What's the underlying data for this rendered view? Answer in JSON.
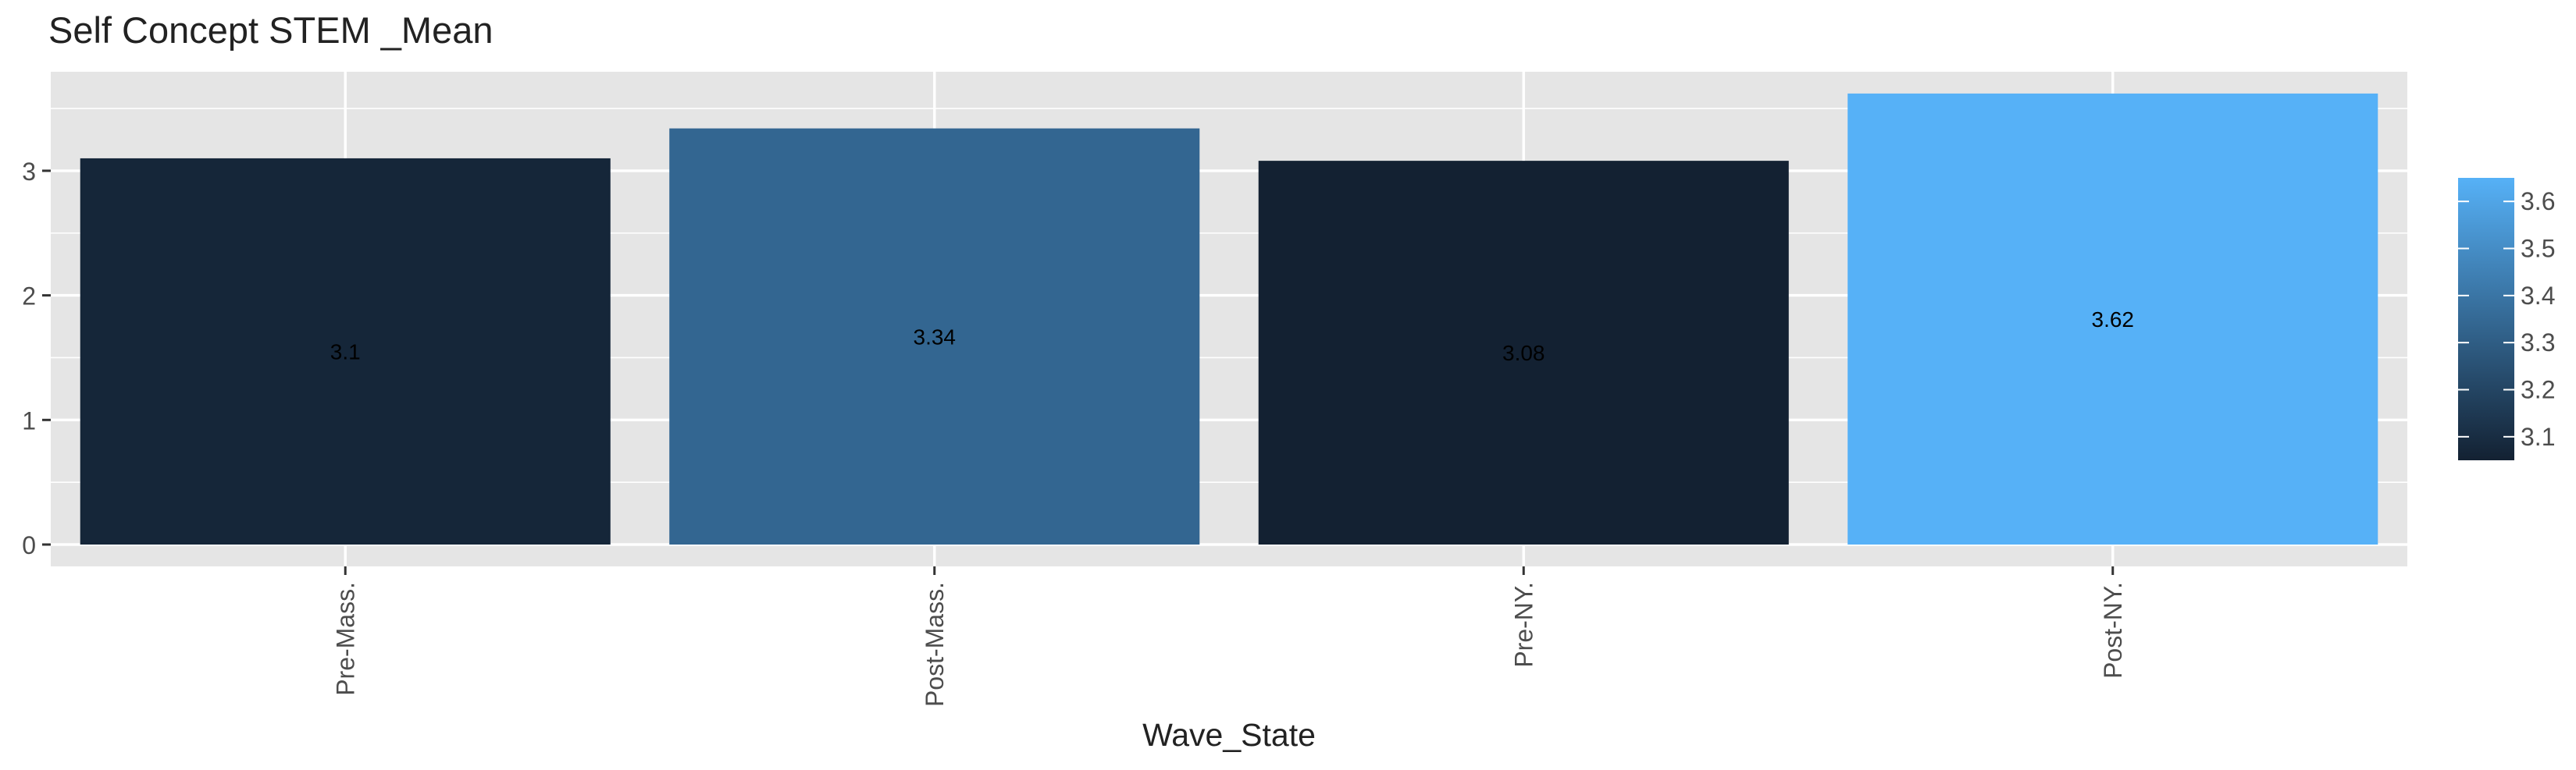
{
  "chart_data": {
    "type": "bar",
    "title": "Self Concept STEM _Mean",
    "xlabel": "Wave_State",
    "ylabel": "",
    "categories": [
      "Pre-Mass.",
      "Post-Mass.",
      "Pre-NY.",
      "Post-NY."
    ],
    "values": [
      3.1,
      3.34,
      3.08,
      3.62
    ],
    "data_labels": [
      "3.1",
      "3.34",
      "3.08",
      "3.62"
    ],
    "ylim": [
      0,
      3.75
    ],
    "yticks": [
      0,
      1,
      2,
      3
    ],
    "grid": true,
    "legend": {
      "type": "colorbar",
      "position": "right",
      "range": [
        3.08,
        3.62
      ],
      "ticks": [
        "3.1",
        "3.2",
        "3.3",
        "3.4",
        "3.5",
        "3.6"
      ],
      "low_color": "#132132",
      "high_color": "#56b1f7"
    },
    "colors": {
      "panel": "#e5e5e5",
      "grid": "#ffffff"
    }
  }
}
